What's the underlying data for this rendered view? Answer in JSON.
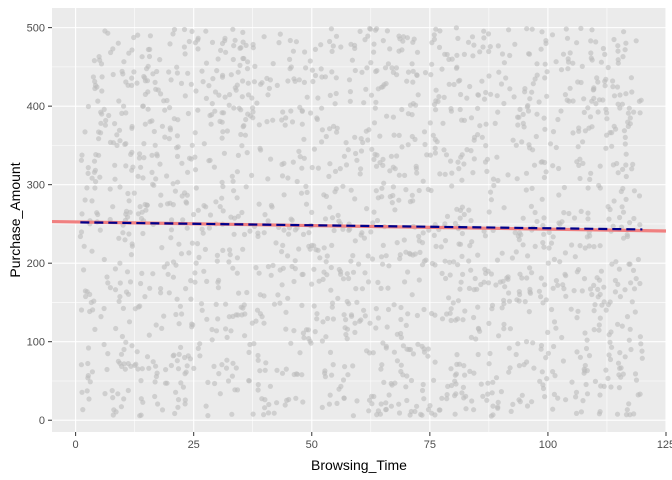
{
  "chart_data": {
    "type": "scatter",
    "title": "",
    "xlabel": "Browsing_Time",
    "ylabel": "Purchase_Amount",
    "xlim": [
      -5,
      125
    ],
    "ylim": [
      -15,
      525
    ],
    "x_ticks": [
      0,
      25,
      50,
      75,
      100,
      125
    ],
    "y_ticks": [
      0,
      100,
      200,
      300,
      400,
      500
    ],
    "grid": true,
    "legend": "none",
    "scatter": {
      "n_points": 1800,
      "x_range": [
        1,
        120
      ],
      "y_range": [
        5,
        500
      ],
      "color": "#bdbdbd",
      "opacity": 0.6
    },
    "series": [
      {
        "kind": "trend",
        "x": [
          -5,
          125
        ],
        "y": [
          253,
          241
        ],
        "color": "#f08080",
        "style": "solid"
      },
      {
        "kind": "trend",
        "x": [
          1,
          120
        ],
        "y": [
          252,
          243
        ],
        "color": "#00008b",
        "style": "dashed"
      }
    ],
    "colors": {
      "panel": "#ebebeb",
      "grid_major": "#ffffff",
      "tick_text": "#4d4d4d"
    }
  }
}
